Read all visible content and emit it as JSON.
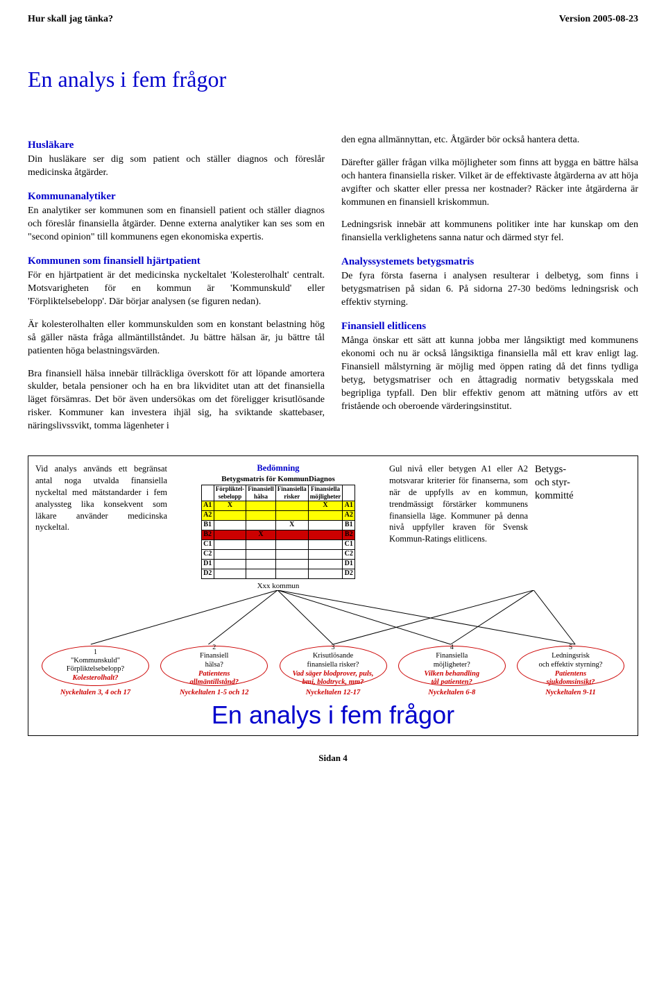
{
  "header": {
    "left": "Hur skall jag tänka?",
    "right": "Version 2005-08-23"
  },
  "title": "En analys i fem frågor",
  "left_col": {
    "h1": "Husläkare",
    "p1": "Din husläkare ser dig som patient och ställer diagnos och föreslår medicinska åtgärder.",
    "h2": "Kommunanalytiker",
    "p2": "En analytiker ser kommunen som en finansiell patient och ställer diagnos och föreslår finansiella åtgärder. Denne externa analytiker kan ses som en \"second opinion\" till kommunens egen ekonomiska expertis.",
    "h3": "Kommunen som finansiell hjärtpatient",
    "p3": "För en hjärtpatient är det medicinska nyckeltalet 'Kolesterolhalt' centralt. Motsvarigheten för en kommun är 'Kommunskuld' eller 'Förpliktelsebelopp'. Där börjar analysen (se figuren nedan).",
    "p4": "Är kolesterolhalten eller kommunskulden som en konstant belastning hög så gäller nästa fråga allmäntillståndet. Ju bättre hälsan är, ju bättre tål patienten höga belastningsvärden.",
    "p5": "Bra finansiell hälsa innebär tillräckliga överskott för att löpande amortera skulder, betala pensioner och ha en bra likviditet utan att det finansiella läget försämras. Det bör även undersökas om det föreligger krisutlösande risker. Kommuner kan investera ihjäl sig, ha sviktande skattebaser, näringslivssvikt, tomma lägenheter i"
  },
  "right_col": {
    "p1": "den egna allmännyttan, etc. Åtgärder bör också hantera detta.",
    "p2": "Därefter gäller frågan vilka möjligheter som finns att bygga en bättre hälsa och hantera finansiella risker. Vilket är de effektivaste åtgärderna av att höja avgifter och skatter eller pressa ner kostnader? Räcker inte åtgärderna är kommunen en finansiell kriskommun.",
    "p3": "Ledningsrisk innebär att kommunens politiker inte har kunskap om den finansiella verklighetens sanna natur och därmed styr fel.",
    "h4": "Analyssystemets betygsmatris",
    "p4": "De fyra första faserna i analysen resulterar i delbetyg, som finns i betygsmatrisen på sidan 6. På sidorna 27-30 bedöms ledningsrisk och effektiv styrning.",
    "h5": "Finansiell elitlicens",
    "p5": "Många önskar ett sätt att kunna jobba mer långsiktigt med kommunens ekonomi och nu är också långsiktiga finansiella mål ett krav enligt lag. Finansiell målstyrning är möjlig med öppen rating då det finns tydliga betyg, betygsmatriser och en åttagradig normativ betygsskala med begripliga typfall. Den blir effektiv genom att mätning utförs av ett fristående och oberoende värderingsinstitut."
  },
  "diagram": {
    "left_text": "Vid analys används ett begränsat antal noga utvalda finansiella nyckeltal med mätstandarder i fem analyssteg lika konsekvent som läkare använder medicinska nyckeltal.",
    "bed_title": "Bedömning",
    "matrix_title": "Betygsmatris för KommunDiagnos",
    "matrix": {
      "headers": [
        "",
        "Förpliktel-\nsebelopp",
        "Finansiell\nhälsa",
        "Finansiella\nrisker",
        "Finansiella\nmöjligheter",
        ""
      ],
      "rows": [
        {
          "grade": "A1",
          "cells": [
            "X",
            "",
            "",
            "X"
          ],
          "bg": "#ffff00"
        },
        {
          "grade": "A2",
          "cells": [
            "",
            "",
            "",
            ""
          ],
          "bg": "#ffff00"
        },
        {
          "grade": "B1",
          "cells": [
            "",
            "",
            "X",
            ""
          ],
          "bg": "#ffffff"
        },
        {
          "grade": "B2",
          "cells": [
            "",
            "X",
            "",
            ""
          ],
          "bg": "#cc0000"
        },
        {
          "grade": "C1",
          "cells": [
            "",
            "",
            "",
            ""
          ],
          "bg": "#ffffff"
        },
        {
          "grade": "C2",
          "cells": [
            "",
            "",
            "",
            ""
          ],
          "bg": "#ffffff"
        },
        {
          "grade": "D1",
          "cells": [
            "",
            "",
            "",
            ""
          ],
          "bg": "#ffffff"
        },
        {
          "grade": "D2",
          "cells": [
            "",
            "",
            "",
            ""
          ],
          "bg": "#ffffff"
        }
      ]
    },
    "xxx": "Xxx kommun",
    "right_text": "Gul nivå eller betygen A1 eller A2 motsvarar kriterier för finanserna, som när de uppfylls av en kommun, trendmässigt förstärker kommunens finansiella läge. Kommuner på denna nivå uppfyller kraven för Svensk Kommun-Ratings elitlicens.",
    "far_right": "Betygs-\noch styr-\nkommitté"
  },
  "bubbles": [
    {
      "num": "1",
      "l1": "\"Kommunskuld\"\nFörpliktelsebelopp?",
      "l2": "Kolesterolhalt?",
      "nyckel": "Nyckeltalen 3, 4 och 17",
      "color": "#cc0000"
    },
    {
      "num": "2",
      "l1": "Finansiell\nhälsa?",
      "l2": "Patientens\nallmäntillstånd?",
      "nyckel": "Nyckeltalen 1-5 och 12",
      "color": "#cc0000"
    },
    {
      "num": "3",
      "l1": "Krisutlösande\nfinansiella risker?",
      "l2": "Vad säger blodprover, puls,\nbmi, blodtryck, mm?",
      "nyckel": "Nyckeltalen 12-17",
      "color": "#cc0000"
    },
    {
      "num": "4",
      "l1": "Finansiella\nmöjligheter?",
      "l2": "Vilken behandling\ntål patienten?",
      "nyckel": "Nyckeltalen 6-8",
      "color": "#cc0000"
    },
    {
      "num": "5",
      "l1": "Ledningsrisk\noch effektiv styrning?",
      "l2": "Patientens\nsjukdomsinsikt?",
      "nyckel": "Nyckeltalen 9-11",
      "color": "#cc0000"
    }
  ],
  "big_line": "En analys i fem frågor",
  "footer": "Sidan 4",
  "colors": {
    "blue": "#0000cc",
    "red": "#cc0000",
    "yellow": "#ffff00"
  },
  "spoke_line_color": "#000000"
}
